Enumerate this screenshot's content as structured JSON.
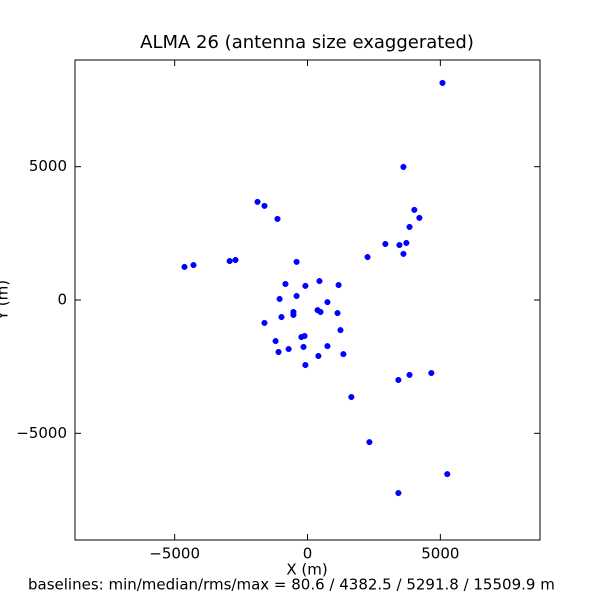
{
  "chart_data": {
    "type": "scatter",
    "title": "ALMA 26 (antenna size exaggerated)",
    "x_label": "X (m)",
    "y_label": "Y (m)",
    "footer": "baselines: min/median/rms/max = 80.6 / 4382.5 / 5291.8 / 15509.9 m",
    "color": "#0000ff",
    "xlim": [
      -8750,
      8750
    ],
    "ylim": [
      -9000,
      9000
    ],
    "xticks": [
      {
        "value": -5000,
        "label": "−5000"
      },
      0,
      5000
    ],
    "yticks": [
      {
        "value": -5000,
        "label": "−5000"
      },
      0,
      5000
    ],
    "x": [
      5080,
      3610,
      -1880,
      -1620,
      -1130,
      4020,
      4210,
      3840,
      2930,
      3460,
      3720,
      3610,
      2260,
      -410,
      -2710,
      -2930,
      -4290,
      -4630,
      -830,
      450,
      -80,
      1170,
      -410,
      -1050,
      750,
      380,
      490,
      -530,
      -530,
      1130,
      -980,
      -1620,
      1240,
      -110,
      -230,
      -1200,
      -150,
      750,
      -710,
      -1090,
      1350,
      410,
      -80,
      4660,
      3840,
      3420,
      1650,
      2330,
      5260,
      3420
    ],
    "y": [
      8140,
      4990,
      3680,
      3530,
      3040,
      3380,
      3080,
      2740,
      2100,
      2060,
      2140,
      1730,
      1610,
      1430,
      1500,
      1460,
      1310,
      1240,
      600,
      710,
      530,
      560,
      150,
      40,
      -80,
      -380,
      -450,
      -450,
      -560,
      -490,
      -640,
      -860,
      -1130,
      -1350,
      -1390,
      -1540,
      -1760,
      -1730,
      -1840,
      -1950,
      -2030,
      -2100,
      -2440,
      -2740,
      -2810,
      -3000,
      -3640,
      -5330,
      -6530,
      -7240
    ]
  }
}
